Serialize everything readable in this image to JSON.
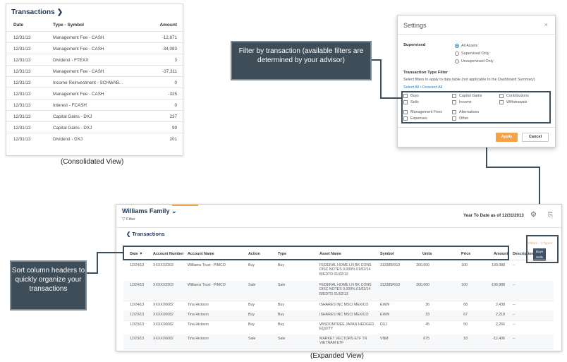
{
  "consolidated": {
    "title": "Transactions",
    "headers": {
      "date": "Date",
      "type": "Type - Symbol",
      "amount": "Amount"
    },
    "rows": [
      {
        "date": "12/31/13",
        "type": "Management Fee - CASH",
        "amount": "-12,871"
      },
      {
        "date": "12/31/13",
        "type": "Management Fee - CASH",
        "amount": "-34,083"
      },
      {
        "date": "12/31/13",
        "type": "Dividend - FTEXX",
        "amount": "3"
      },
      {
        "date": "12/31/13",
        "type": "Management Fee - CASH",
        "amount": "-37,311"
      },
      {
        "date": "12/31/13",
        "type": "Income Reinvestment - SCHWAB...",
        "amount": "0"
      },
      {
        "date": "12/31/13",
        "type": "Management Fee - CASH",
        "amount": "-325"
      },
      {
        "date": "12/31/13",
        "type": "Interest - FCASH",
        "amount": "0"
      },
      {
        "date": "12/31/13",
        "type": "Capital Gains - DXJ",
        "amount": "237"
      },
      {
        "date": "12/31/13",
        "type": "Capital Gains - DXJ",
        "amount": "99"
      },
      {
        "date": "12/31/13",
        "type": "Dividend - DXJ",
        "amount": "201"
      }
    ],
    "caption": "(Consolidated View)"
  },
  "settings": {
    "title": "Settings",
    "close_icon": "×",
    "supervised_label": "Supervised",
    "supervised_options": [
      "All Assets",
      "Supervised Only",
      "Unsupervised Only"
    ],
    "selected_supervised": "All Assets",
    "filter_title": "Transaction Type Filter",
    "filter_desc": "Select filters to apply to data table (not applicable to the Dashboard Summary)",
    "select_links": "Select All • Deselect All",
    "checkboxes": {
      "col1": [
        "Buys",
        "Sells",
        "Management Fees",
        "Expenses"
      ],
      "col2": [
        "Capital Gains",
        "Income",
        "Alternatives",
        "Other"
      ],
      "col3": [
        "Contributions",
        "Withdrawals"
      ]
    },
    "apply_label": "Apply",
    "cancel_label": "Cancel"
  },
  "callouts": {
    "filter": "Filter by transaction (available filters are determined by your advisor)",
    "sort": "Sort column headers to quickly organize your transactions"
  },
  "expanded": {
    "account_name": "Williams Family",
    "account_chevron": "⌄",
    "filter_label": "Filter",
    "ytd_label": "Year To Date as of 12/31/2013",
    "back_label": "Transactions",
    "filters_note": "Filters - 2 Types",
    "filter_tag_1": "Buys",
    "filter_tag_2": "Sells",
    "headers": {
      "date": "Date",
      "account_number": "Account Number",
      "account_name": "Account Name",
      "action": "Action",
      "type": "Type",
      "asset_name": "Asset Name",
      "symbol": "Symbol",
      "units": "Units",
      "price": "Price",
      "amount": "Amount",
      "description": "Description"
    },
    "rows": [
      {
        "date": "12/24/13",
        "account_number": "XXXXX2303",
        "account_name": "Williams Trust - PIMCO",
        "action": "Buy",
        "type": "Buy",
        "asset_name": "FEDERAL HOME LN BK CONS DISC NOTES 0.000% 01/02/14 B/EDTD 01/02/13",
        "symbol": "313385RG3",
        "units": "200,000",
        "price": "100",
        "amount": "199,988",
        "description": "--"
      },
      {
        "date": "12/24/13",
        "account_number": "XXXXX2303",
        "account_name": "Williams Trust - PIMCO",
        "action": "Sale",
        "type": "Sale",
        "asset_name": "FEDERAL HOME LN BK CONS DISC NOTES 0.000% 01/02/14 B/EDTD 01/02/13",
        "symbol": "313385RG3",
        "units": "200,000",
        "price": "100",
        "amount": "-199,988",
        "description": "--"
      },
      {
        "date": "12/24/13",
        "account_number": "XXXXX6082",
        "account_name": "Tina Hickson",
        "action": "Buy",
        "type": "Buy",
        "asset_name": "ISHARES INC MSCI MEXICO",
        "symbol": "EWW",
        "units": "36",
        "price": "68",
        "amount": "2,438",
        "description": "--"
      },
      {
        "date": "12/23/13",
        "account_number": "XXXXX6082",
        "account_name": "Tina Hickson",
        "action": "Buy",
        "type": "Buy",
        "asset_name": "ISHARES INC MSCI MEXICO",
        "symbol": "EWW",
        "units": "33",
        "price": "67",
        "amount": "2,218",
        "description": "--"
      },
      {
        "date": "12/23/13",
        "account_number": "XXXXX6082",
        "account_name": "Tina Hickson",
        "action": "Buy",
        "type": "Buy",
        "asset_name": "WISDOMTREE JAPAN HEDGED EQUITY",
        "symbol": "DXJ",
        "units": "45",
        "price": "50",
        "amount": "2,266",
        "description": "--"
      },
      {
        "date": "12/23/13",
        "account_number": "XXXXX6082",
        "account_name": "Tina Hickson",
        "action": "Sale",
        "type": "Sale",
        "asset_name": "MARKET VECTORS ETF TR VIETNAM ETF",
        "symbol": "VNM",
        "units": "675",
        "price": "18",
        "amount": "-12,406",
        "description": "--"
      }
    ],
    "caption": "(Expanded View)"
  }
}
